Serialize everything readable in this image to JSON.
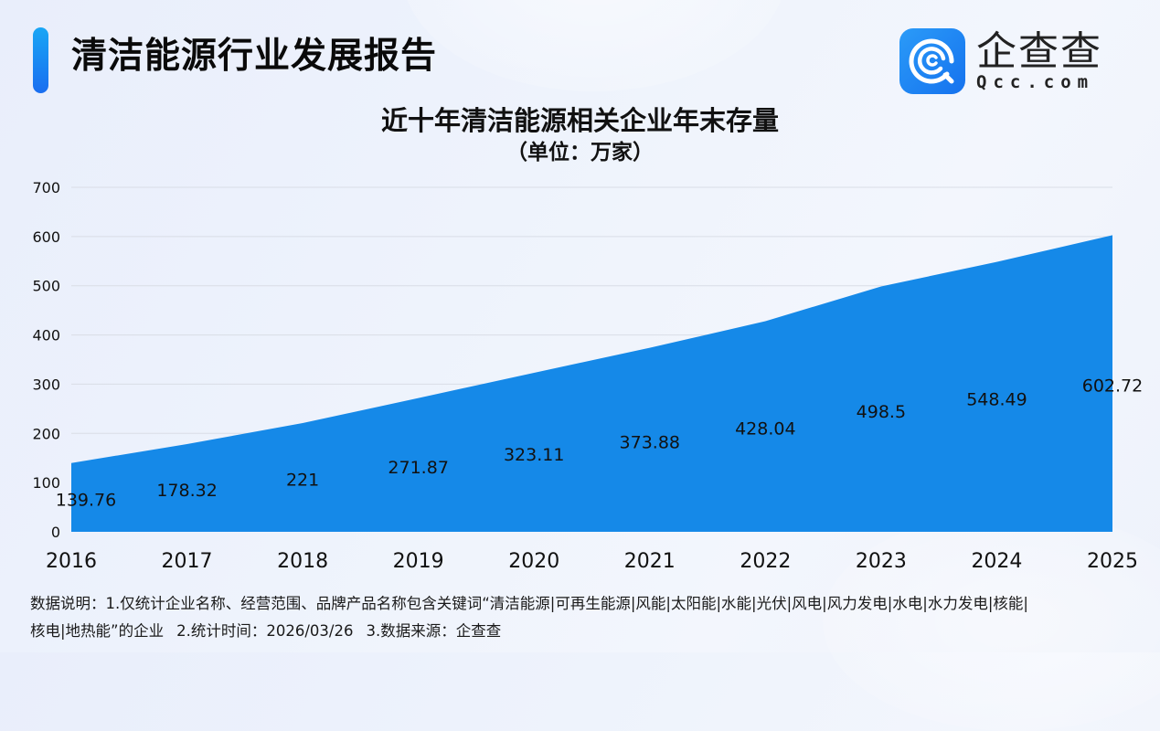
{
  "header": {
    "report_title": "清洁能源行业发展报告",
    "logo": {
      "icon": "qcc-logo-icon",
      "name_cn": "企查查",
      "name_en": "Qcc.com"
    }
  },
  "chart": {
    "title": "近十年清洁能源相关企业年末存量",
    "subtitle": "（单位：万家）"
  },
  "chart_data": {
    "type": "area",
    "title": "近十年清洁能源相关企业年末存量",
    "subtitle": "（单位：万家）",
    "xlabel": "",
    "ylabel": "",
    "categories": [
      "2016",
      "2017",
      "2018",
      "2019",
      "2020",
      "2021",
      "2022",
      "2023",
      "2024",
      "2025"
    ],
    "values": [
      139.76,
      178.32,
      221,
      271.87,
      323.11,
      373.88,
      428.04,
      498.5,
      548.49,
      602.72
    ],
    "value_labels": [
      "139.76",
      "178.32",
      "221",
      "271.87",
      "323.11",
      "373.88",
      "428.04",
      "498.5",
      "548.49",
      "602.72"
    ],
    "ylim": [
      0,
      700
    ],
    "yticks": [
      0,
      100,
      200,
      300,
      400,
      500,
      600,
      700
    ],
    "ytick_labels": [
      "0",
      "100",
      "200",
      "300",
      "400",
      "500",
      "600",
      "700"
    ],
    "grid": true,
    "legend": null,
    "colors": {
      "area_fill": "#1589E8",
      "gridline": "#d9dde6",
      "label_text": "#111111"
    }
  },
  "notes": {
    "line1": "数据说明：1.仅统计企业名称、经营范围、品牌产品名称包含关键词“清洁能源|可再生能源|风能|太阳能|水能|光伏|风电|风力发电|水电|水力发电|核能|",
    "line2_part1": "核电|地热能”的企业",
    "line2_part2": "2.统计时间：2026/03/26",
    "line2_part3": "3.数据来源：企查查"
  },
  "colors": {
    "accent": "#1a8cf2",
    "background": "#eef2fb"
  }
}
